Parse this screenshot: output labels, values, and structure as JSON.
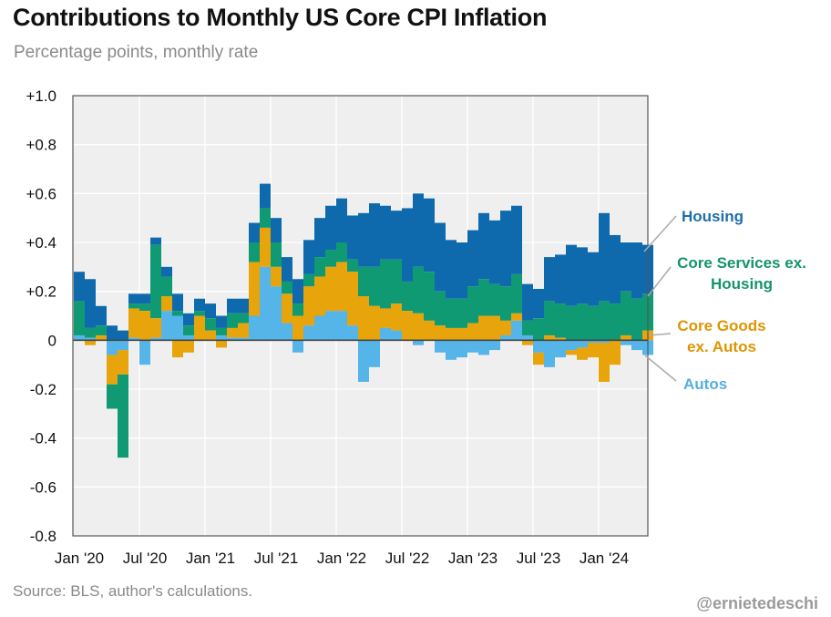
{
  "title": "Contributions to Monthly US Core CPI Inflation",
  "subtitle": "Percentage points, monthly rate",
  "source": "Source: BLS, author's calculations.",
  "handle": "@ernietedeschi",
  "colors": {
    "housing": "#0f6aad",
    "core_services_ex_housing": "#0f9a73",
    "core_goods_ex_autos": "#e7a40b",
    "autos": "#55b4e8",
    "label_housing": "#1e6ea8",
    "label_services": "#14946a",
    "label_goods": "#dd9500",
    "label_autos": "#55aee0",
    "plot_bg": "#efefef"
  },
  "chart_data": {
    "type": "bar",
    "stacked": true,
    "title": "Contributions to Monthly US Core CPI Inflation",
    "ylabel": "Percentage points, monthly rate",
    "ylim": [
      -0.8,
      1.0
    ],
    "yticks": [
      -0.8,
      -0.6,
      -0.4,
      -0.2,
      0,
      0.2,
      0.4,
      0.6,
      0.8,
      1.0
    ],
    "yticklabels": [
      "-0.8",
      "-0.6",
      "-0.4",
      "-0.2",
      "0",
      "+0.2",
      "+0.4",
      "+0.6",
      "+0.8",
      "+1.0"
    ],
    "xticklabels": [
      "Jan '20",
      "Jul '20",
      "Jan '21",
      "Jul '21",
      "Jan '22",
      "Jul '22",
      "Jan '23",
      "Jul '23",
      "Jan '24"
    ],
    "grid": true,
    "categories": [
      "Jan '20",
      "Feb '20",
      "Mar '20",
      "Apr '20",
      "May '20",
      "Jun '20",
      "Jul '20",
      "Aug '20",
      "Sep '20",
      "Oct '20",
      "Nov '20",
      "Dec '20",
      "Jan '21",
      "Feb '21",
      "Mar '21",
      "Apr '21",
      "May '21",
      "Jun '21",
      "Jul '21",
      "Aug '21",
      "Sep '21",
      "Oct '21",
      "Nov '21",
      "Dec '21",
      "Jan '22",
      "Feb '22",
      "Mar '22",
      "Apr '22",
      "May '22",
      "Jun '22",
      "Jul '22",
      "Aug '22",
      "Sep '22",
      "Oct '22",
      "Nov '22",
      "Dec '22",
      "Jan '23",
      "Feb '23",
      "Mar '23",
      "Apr '23",
      "May '23",
      "Jun '23",
      "Jul '23",
      "Aug '23",
      "Sep '23",
      "Oct '23",
      "Nov '23",
      "Dec '23",
      "Jan '24",
      "Feb '24",
      "Mar '24",
      "Apr '24",
      "May '24"
    ],
    "series": [
      {
        "name": "Autos",
        "color_key": "autos",
        "values": [
          0.02,
          0.01,
          0,
          -0.06,
          -0.04,
          0.01,
          -0.1,
          0.01,
          0.12,
          0.1,
          0.02,
          0,
          0,
          0.02,
          0.01,
          0.01,
          0.1,
          0.3,
          0.22,
          0.07,
          -0.05,
          0.06,
          0.1,
          0.12,
          0.12,
          0.06,
          -0.17,
          -0.11,
          0.05,
          0.04,
          0,
          -0.02,
          0,
          -0.05,
          -0.08,
          -0.07,
          -0.05,
          -0.06,
          -0.04,
          0.02,
          0.08,
          0.02,
          -0.05,
          -0.11,
          -0.07,
          -0.04,
          -0.03,
          -0.01,
          -0.01,
          0,
          -0.02,
          -0.04,
          -0.06
        ]
      },
      {
        "name": "Core Goods ex. Autos",
        "color_key": "core_goods_ex_autos",
        "values": [
          0,
          -0.02,
          0.02,
          -0.12,
          -0.1,
          0.12,
          0.12,
          0.08,
          0.06,
          -0.07,
          -0.05,
          0.1,
          0.04,
          -0.03,
          0.04,
          0.06,
          0.22,
          0.16,
          0.08,
          0.12,
          0.1,
          0.16,
          0.16,
          0.18,
          0.2,
          0.22,
          0.18,
          0.14,
          0.08,
          0.11,
          0.12,
          0.11,
          0.08,
          0.06,
          0.05,
          0.05,
          0.07,
          0.1,
          0.1,
          0.06,
          0.03,
          -0.02,
          -0.05,
          0.02,
          0.01,
          -0.02,
          -0.05,
          -0.06,
          -0.16,
          -0.1,
          0.02,
          0,
          0.04
        ]
      },
      {
        "name": "Core Services ex. Housing",
        "color_key": "core_services_ex_housing",
        "values": [
          0.14,
          0.04,
          0.04,
          -0.1,
          -0.34,
          0.02,
          0.03,
          0.3,
          0.08,
          0.02,
          0.04,
          0.02,
          0.05,
          0.03,
          0.06,
          0.04,
          0.08,
          0.08,
          0.1,
          0.05,
          0.05,
          0.05,
          0.08,
          0.07,
          0.08,
          0.05,
          0.12,
          0.16,
          0.2,
          0.18,
          0.12,
          0.19,
          0.2,
          0.14,
          0.12,
          0.12,
          0.15,
          0.15,
          0.13,
          0.14,
          0.16,
          0.06,
          0.09,
          0.14,
          0.14,
          0.14,
          0.15,
          0.14,
          0.16,
          0.15,
          0.18,
          0.17,
          0.15
        ]
      },
      {
        "name": "Housing",
        "color_key": "housing",
        "values": [
          0.12,
          0.2,
          0.08,
          0.06,
          0.04,
          0.04,
          0.04,
          0.03,
          0.04,
          0.07,
          0.05,
          0.05,
          0.06,
          0.05,
          0.06,
          0.06,
          0.08,
          0.1,
          0.1,
          0.1,
          0.1,
          0.14,
          0.16,
          0.18,
          0.18,
          0.18,
          0.22,
          0.26,
          0.22,
          0.2,
          0.3,
          0.3,
          0.3,
          0.28,
          0.24,
          0.23,
          0.23,
          0.27,
          0.26,
          0.31,
          0.28,
          0.15,
          0.12,
          0.18,
          0.2,
          0.25,
          0.23,
          0.22,
          0.36,
          0.28,
          0.2,
          0.23,
          0.2
        ]
      }
    ],
    "legend": "right, direct labels"
  },
  "legend_labels": {
    "housing": "Housing",
    "services_line1": "Core Services ex.",
    "services_line2": "Housing",
    "goods_line1": "Core Goods",
    "goods_line2": "ex. Autos",
    "autos": "Autos"
  }
}
